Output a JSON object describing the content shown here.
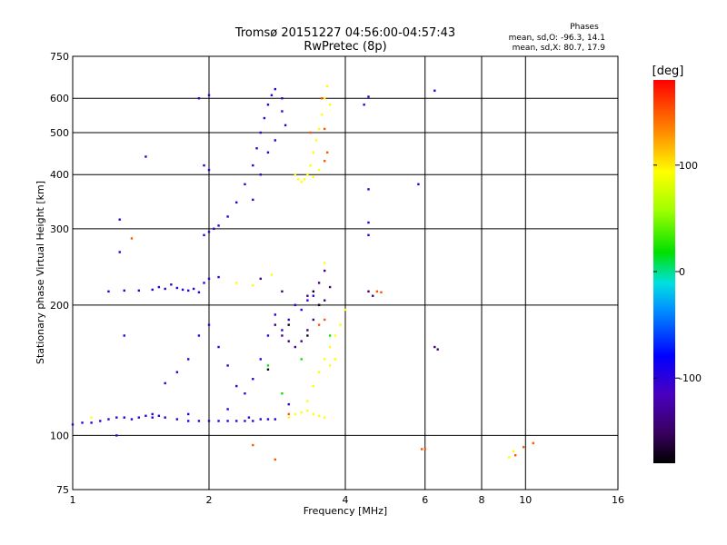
{
  "chart_data": {
    "type": "scatter",
    "title": "Tromsø 20151227 04:56:00-04:57:43",
    "subtitle": "RwPretec (8p)",
    "xlabel": "Frequency [MHz]",
    "ylabel": "Stationary phase Virtual Height [km]",
    "x_scale": "log",
    "y_scale": "log",
    "xlim": [
      1,
      16
    ],
    "ylim": [
      75,
      750
    ],
    "x_ticks": [
      1,
      2,
      4,
      6,
      8,
      10,
      16
    ],
    "y_ticks": [
      75,
      100,
      200,
      300,
      400,
      500,
      600,
      750
    ],
    "grid": true,
    "phase_box": {
      "title": "Phases",
      "line1": "mean, sd,O: -96.3, 14.1",
      "line2": "mean, sd,X: 80.7, 17.9"
    },
    "colorbar": {
      "label": "[deg]",
      "range": [
        -180,
        180
      ],
      "ticks": [
        100,
        0,
        -100
      ],
      "colormap": "rainbow (black-purple-blue-cyan-green-yellow-orange-red)"
    },
    "series": [
      {
        "color_deg": -100,
        "points": [
          [
            1.0,
            106
          ],
          [
            1.05,
            107
          ],
          [
            1.1,
            107
          ],
          [
            1.15,
            108
          ],
          [
            1.2,
            109
          ],
          [
            1.25,
            110
          ],
          [
            1.3,
            110
          ],
          [
            1.35,
            109
          ],
          [
            1.4,
            110
          ],
          [
            1.45,
            111
          ],
          [
            1.5,
            110
          ],
          [
            1.55,
            111
          ],
          [
            1.6,
            110
          ],
          [
            1.7,
            109
          ],
          [
            1.8,
            108
          ],
          [
            1.9,
            108
          ],
          [
            2.0,
            108
          ],
          [
            2.1,
            108
          ],
          [
            2.2,
            108
          ],
          [
            2.3,
            108
          ],
          [
            2.4,
            108
          ],
          [
            2.5,
            108
          ],
          [
            2.6,
            109
          ],
          [
            2.7,
            109
          ],
          [
            2.8,
            109
          ],
          [
            1.2,
            215
          ],
          [
            1.3,
            216
          ],
          [
            1.4,
            216
          ],
          [
            1.5,
            217
          ],
          [
            1.55,
            220
          ],
          [
            1.6,
            218
          ],
          [
            1.65,
            223
          ],
          [
            1.7,
            219
          ],
          [
            1.75,
            217
          ],
          [
            1.8,
            216
          ],
          [
            1.85,
            218
          ],
          [
            1.9,
            214
          ],
          [
            1.95,
            225
          ],
          [
            2.0,
            230
          ],
          [
            2.1,
            232
          ],
          [
            1.6,
            132
          ],
          [
            1.7,
            140
          ],
          [
            1.8,
            150
          ],
          [
            1.9,
            170
          ],
          [
            2.0,
            180
          ],
          [
            2.1,
            160
          ],
          [
            2.2,
            145
          ],
          [
            2.3,
            130
          ],
          [
            2.4,
            125
          ],
          [
            2.5,
            135
          ],
          [
            2.6,
            150
          ],
          [
            2.7,
            170
          ],
          [
            2.8,
            190
          ],
          [
            2.9,
            175
          ],
          [
            3.0,
            185
          ],
          [
            3.1,
            200
          ],
          [
            3.2,
            195
          ],
          [
            3.3,
            205
          ],
          [
            3.4,
            210
          ],
          [
            1.95,
            290
          ],
          [
            2.0,
            295
          ],
          [
            2.05,
            300
          ],
          [
            2.1,
            305
          ],
          [
            2.2,
            320
          ],
          [
            2.3,
            345
          ],
          [
            2.4,
            380
          ],
          [
            2.5,
            420
          ],
          [
            2.55,
            460
          ],
          [
            2.6,
            500
          ],
          [
            2.65,
            540
          ],
          [
            2.7,
            580
          ],
          [
            2.75,
            610
          ],
          [
            2.8,
            630
          ],
          [
            2.9,
            560
          ],
          [
            2.95,
            520
          ],
          [
            2.5,
            350
          ],
          [
            2.6,
            400
          ],
          [
            2.7,
            450
          ],
          [
            2.8,
            480
          ],
          [
            2.9,
            600
          ],
          [
            1.9,
            600
          ],
          [
            2.0,
            610
          ],
          [
            1.95,
            420
          ],
          [
            2.0,
            410
          ],
          [
            1.45,
            440
          ],
          [
            1.27,
            315
          ],
          [
            1.27,
            265
          ],
          [
            1.3,
            170
          ],
          [
            1.25,
            100
          ],
          [
            2.45,
            110
          ],
          [
            1.5,
            112
          ],
          [
            1.8,
            112
          ],
          [
            2.2,
            115
          ],
          [
            3.0,
            118
          ],
          [
            4.5,
            605
          ],
          [
            4.5,
            370
          ],
          [
            4.5,
            310
          ],
          [
            4.5,
            290
          ],
          [
            5.8,
            380
          ],
          [
            6.3,
            625
          ],
          [
            4.4,
            580
          ]
        ]
      },
      {
        "color_deg": -140,
        "points": [
          [
            2.8,
            180
          ],
          [
            2.9,
            170
          ],
          [
            3.0,
            165
          ],
          [
            3.1,
            160
          ],
          [
            3.2,
            165
          ],
          [
            3.3,
            175
          ],
          [
            3.4,
            185
          ],
          [
            3.5,
            200
          ],
          [
            3.6,
            205
          ],
          [
            3.5,
            225
          ],
          [
            3.6,
            240
          ],
          [
            3.7,
            220
          ],
          [
            4.5,
            215
          ],
          [
            4.6,
            210
          ],
          [
            6.3,
            160
          ],
          [
            6.4,
            158
          ],
          [
            2.6,
            230
          ],
          [
            2.9,
            215
          ],
          [
            3.3,
            210
          ]
        ]
      },
      {
        "color_deg": 95,
        "points": [
          [
            3.1,
            400
          ],
          [
            3.15,
            390
          ],
          [
            3.2,
            385
          ],
          [
            3.25,
            390
          ],
          [
            3.3,
            400
          ],
          [
            3.35,
            420
          ],
          [
            3.4,
            450
          ],
          [
            3.45,
            480
          ],
          [
            3.5,
            510
          ],
          [
            3.55,
            550
          ],
          [
            3.6,
            600
          ],
          [
            3.65,
            640
          ],
          [
            3.7,
            580
          ],
          [
            3.5,
            410
          ],
          [
            3.4,
            395
          ],
          [
            3.0,
            110
          ],
          [
            3.1,
            112
          ],
          [
            3.2,
            113
          ],
          [
            3.3,
            114
          ],
          [
            3.4,
            112
          ],
          [
            3.5,
            111
          ],
          [
            3.6,
            110
          ],
          [
            3.3,
            120
          ],
          [
            3.4,
            130
          ],
          [
            3.5,
            140
          ],
          [
            3.6,
            150
          ],
          [
            3.7,
            160
          ],
          [
            3.8,
            170
          ],
          [
            3.9,
            180
          ],
          [
            4.0,
            195
          ],
          [
            3.7,
            145
          ],
          [
            3.8,
            150
          ],
          [
            1.1,
            110
          ],
          [
            2.3,
            225
          ],
          [
            2.5,
            222
          ],
          [
            2.75,
            235
          ],
          [
            3.6,
            250
          ],
          [
            9.2,
            89
          ],
          [
            9.4,
            92
          ]
        ]
      },
      {
        "color_deg": 150,
        "points": [
          [
            3.55,
            600
          ],
          [
            3.6,
            510
          ],
          [
            3.65,
            450
          ],
          [
            3.6,
            430
          ],
          [
            3.35,
            500
          ],
          [
            3.5,
            180
          ],
          [
            3.6,
            185
          ],
          [
            4.7,
            215
          ],
          [
            4.8,
            214
          ],
          [
            9.5,
            90
          ],
          [
            9.9,
            94
          ],
          [
            10.4,
            96
          ],
          [
            1.35,
            285
          ],
          [
            3.0,
            112
          ],
          [
            2.5,
            95
          ],
          [
            2.8,
            88
          ],
          [
            5.9,
            93
          ],
          [
            6.0,
            93
          ]
        ]
      },
      {
        "color_deg": 20,
        "points": [
          [
            2.7,
            145
          ],
          [
            2.9,
            125
          ],
          [
            3.2,
            150
          ],
          [
            3.7,
            170
          ]
        ]
      },
      {
        "color_deg": -170,
        "points": [
          [
            2.7,
            142
          ],
          [
            3.0,
            180
          ],
          [
            3.3,
            170
          ],
          [
            3.4,
            215
          ],
          [
            3.5,
            200
          ]
        ]
      }
    ]
  }
}
